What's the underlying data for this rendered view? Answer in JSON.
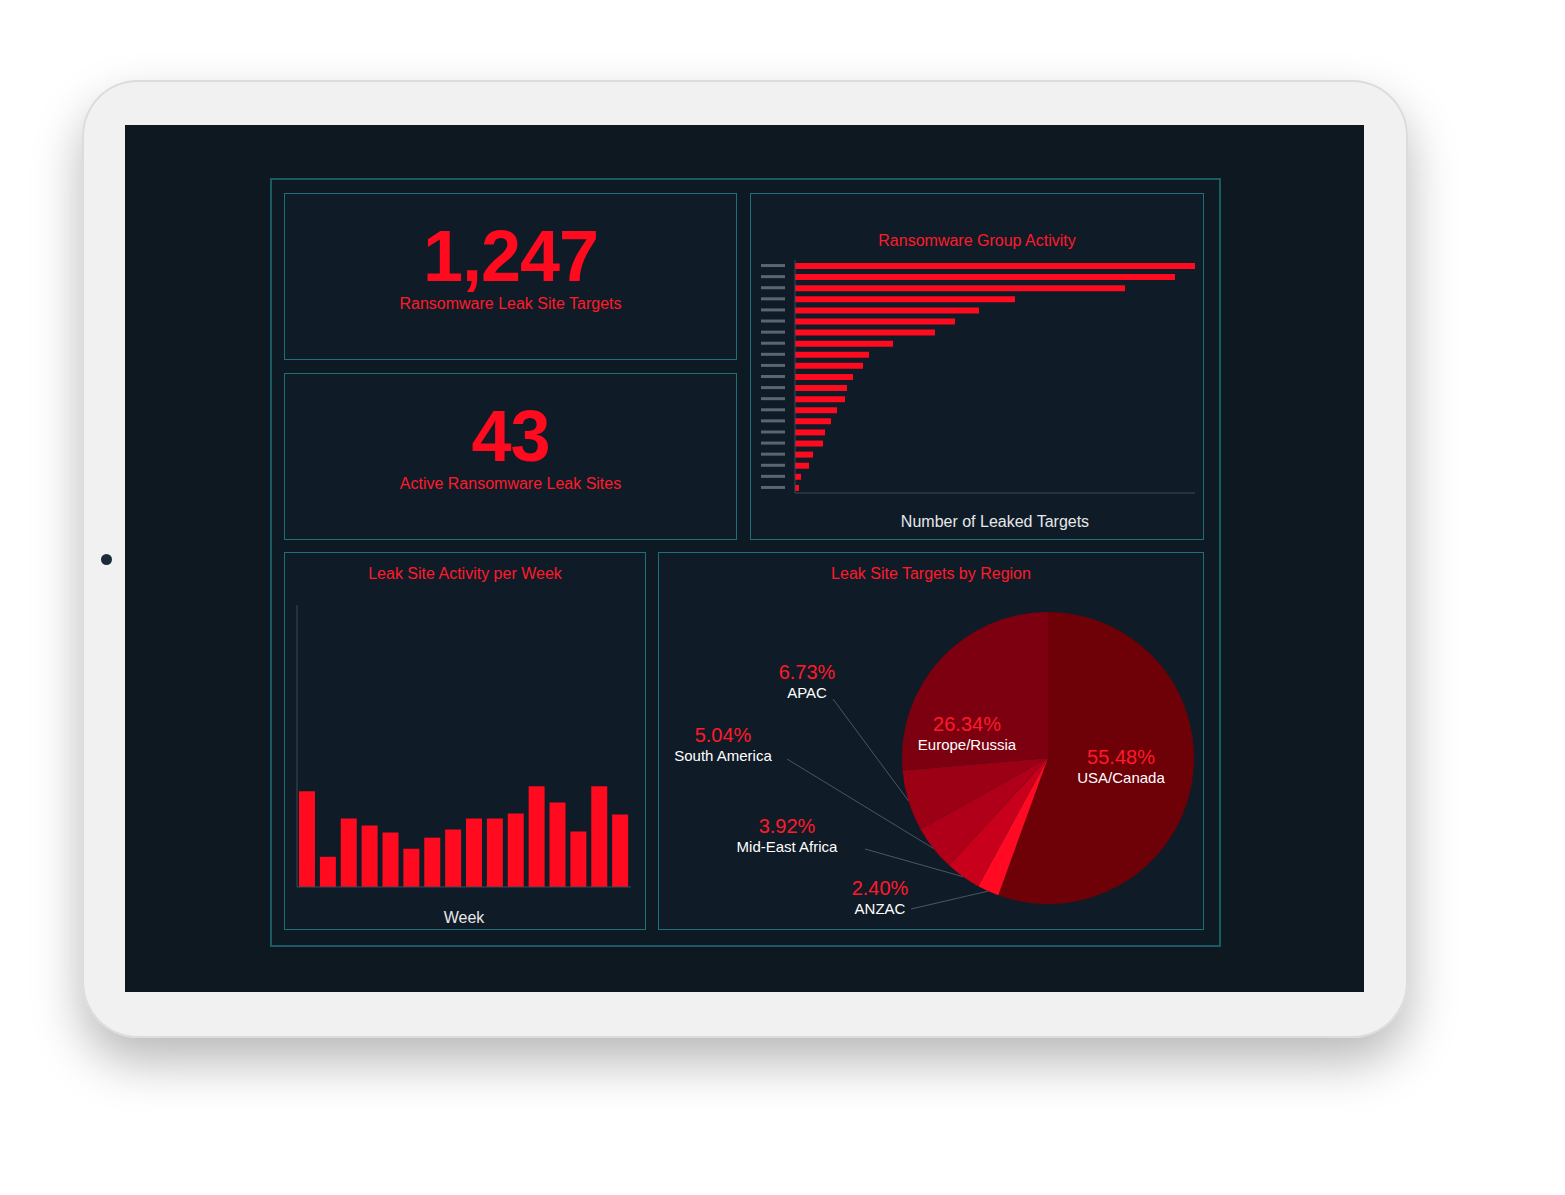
{
  "kpis": [
    {
      "value": "1,247",
      "label": "Ransomware Leak Site Targets"
    },
    {
      "value": "43",
      "label": "Active Ransomware Leak Sites"
    }
  ],
  "chart_data": [
    {
      "type": "bar",
      "title": "Ransomware Group Activity",
      "orientation": "horizontal",
      "categories": [
        null,
        null,
        null,
        null,
        null,
        null,
        null,
        null,
        null,
        null,
        null,
        null,
        null,
        null,
        null,
        null,
        null,
        null,
        null,
        null,
        null
      ],
      "values": [
        200,
        190,
        165,
        110,
        92,
        80,
        70,
        49,
        37,
        34,
        29,
        26,
        25,
        21,
        18,
        15,
        14,
        9,
        7,
        3,
        2
      ],
      "color": "#ff0a1e",
      "xlabel": "Number of Leaked Targets",
      "xlim": [
        0,
        200
      ],
      "tick_labels": false,
      "grid": false
    },
    {
      "type": "bar",
      "title": "Leak Site Activity per Week",
      "categories": [
        null,
        null,
        null,
        null,
        null,
        null,
        null,
        null,
        null,
        null,
        null,
        null,
        null,
        null,
        null,
        null
      ],
      "values": [
        95,
        30,
        68,
        61,
        54,
        38,
        49,
        57,
        68,
        68,
        73,
        100,
        84,
        55,
        100,
        72
      ],
      "color": "#ff0a1e",
      "xlabel": "Week",
      "ylim": [
        0,
        280
      ],
      "tick_labels": false,
      "grid": false
    },
    {
      "type": "pie",
      "title": "Leak Site Targets by Region",
      "categories": [
        "USA/Canada",
        "ANZAC",
        "Mid-East Africa",
        "South America",
        "APAC",
        "Europe/Russia"
      ],
      "values": [
        55.48,
        2.4,
        3.92,
        5.04,
        6.73,
        26.34
      ],
      "value_labels": [
        "55.48%",
        "2.40%",
        "3.92%",
        "5.04%",
        "6.73%",
        "26.34%"
      ],
      "colors": [
        "#6e0008",
        "#ff0a22",
        "#c8001c",
        "#b00019",
        "#9c0015",
        "#7d0010"
      ],
      "data_labels": true
    }
  ]
}
